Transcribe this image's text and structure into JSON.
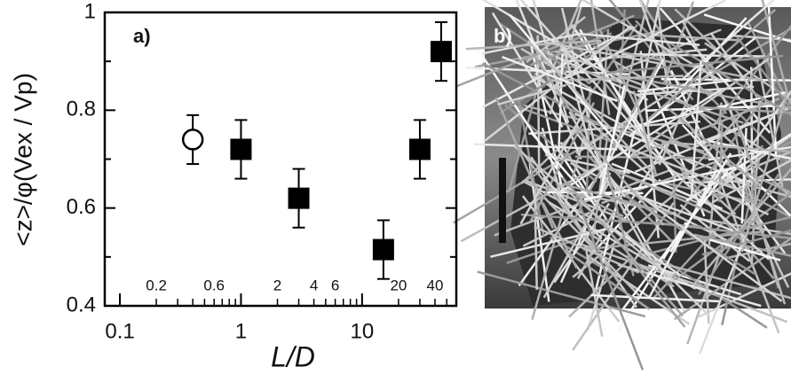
{
  "chart_data": {
    "type": "scatter",
    "panel_label": "a)",
    "x_label": "L/D",
    "y_label": "<z>/φ(Vex / Vp)",
    "log_x": true,
    "xlim": [
      0.075,
      60
    ],
    "ylim": [
      0.4,
      1
    ],
    "xticks": [
      0.1,
      1,
      10
    ],
    "xminor_labeled": [
      0.2,
      0.6,
      2,
      4,
      6,
      20,
      40
    ],
    "xminor_unlabeled": [
      0.3,
      0.4,
      0.5,
      0.7,
      0.8,
      0.9,
      3,
      5,
      7,
      8,
      9,
      30,
      50
    ],
    "yticks": [
      0.4,
      0.6,
      0.8,
      1
    ],
    "yminor_ticks": [
      0.5,
      0.7,
      0.9
    ],
    "series": [
      {
        "marker": "circle",
        "color": "#000000",
        "x": [
          0.4
        ],
        "values": [
          0.74
        ],
        "errors": [
          0.05
        ]
      },
      {
        "marker": "square",
        "color": "#000000",
        "x": [
          1,
          3,
          15,
          30,
          45
        ],
        "values": [
          0.72,
          0.62,
          0.515,
          0.72,
          0.92
        ],
        "errors": [
          0.06,
          0.06,
          0.06,
          0.06,
          0.06
        ]
      }
    ]
  },
  "photo": {
    "panel_label": "b)"
  }
}
